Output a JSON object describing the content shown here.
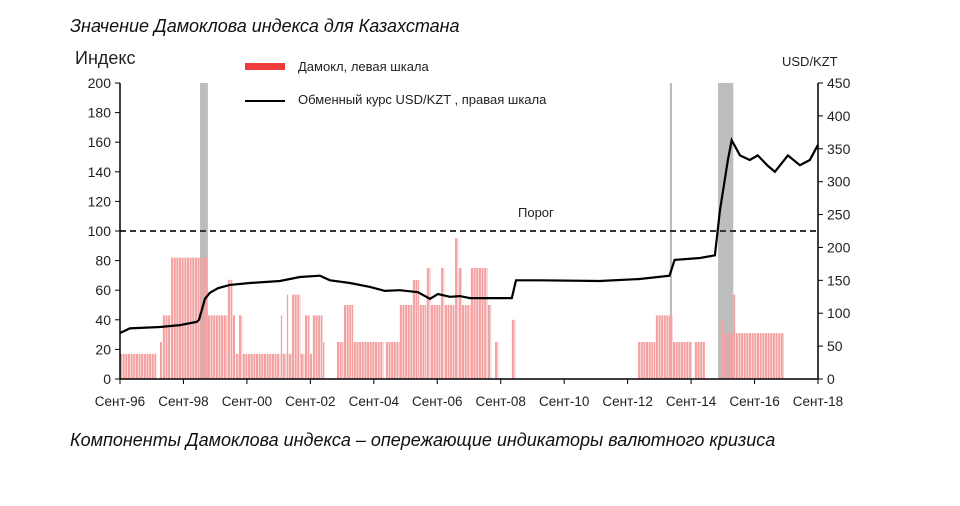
{
  "header": {
    "title": "Значение Дамоклова индекса для Казахстана"
  },
  "footer": {
    "caption": "Компоненты Дамоклова индекса – опережающие индикаторы валютного кризиса"
  },
  "chart_data": {
    "type": "bar+line",
    "left_axis_label": "Индекс",
    "right_axis_label": "USD/KZT",
    "ylim_left": [
      0,
      200
    ],
    "ylim_right": [
      0,
      450
    ],
    "yticks_left": [
      0,
      20,
      40,
      60,
      80,
      100,
      120,
      140,
      160,
      180,
      200
    ],
    "yticks_right": [
      0,
      50,
      100,
      150,
      200,
      250,
      300,
      350,
      400,
      450
    ],
    "xlim_years": [
      1996.67,
      2018.67
    ],
    "xticks": [
      {
        "year": 1996.67,
        "label": "Сент-96"
      },
      {
        "year": 1998.67,
        "label": "Сент-98"
      },
      {
        "year": 2000.67,
        "label": "Сент-00"
      },
      {
        "year": 2002.67,
        "label": "Сент-02"
      },
      {
        "year": 2004.67,
        "label": "Сент-04"
      },
      {
        "year": 2006.67,
        "label": "Сент-06"
      },
      {
        "year": 2008.67,
        "label": "Сент-08"
      },
      {
        "year": 2010.67,
        "label": "Сент-10"
      },
      {
        "year": 2012.67,
        "label": "Сент-12"
      },
      {
        "year": 2014.67,
        "label": "Сент-14"
      },
      {
        "year": 2016.67,
        "label": "Сент-16"
      },
      {
        "year": 2018.67,
        "label": "Сент-18"
      }
    ],
    "threshold": {
      "value": 100,
      "label": "Порог"
    },
    "legend": {
      "position": "top-center",
      "bar_label": "Дамокл, левая шкала",
      "line_label": "Обменный курс USD/KZT , правая шкала"
    },
    "colors": {
      "bars": "#f4a0a0",
      "legend_bar": "#ee3b3b",
      "line": "#000000",
      "crisis": "#bdbdbd"
    },
    "crisis_periods": [
      [
        1999.19,
        1999.44
      ],
      [
        2014.0,
        2014.07
      ],
      [
        2015.52,
        2016.0
      ]
    ],
    "damocles_runs": [
      [
        1996.67,
        1997.83,
        17
      ],
      [
        1997.93,
        1998.02,
        25
      ],
      [
        1998.02,
        1998.28,
        43
      ],
      [
        1998.28,
        1999.44,
        82
      ],
      [
        1999.44,
        2000.07,
        43
      ],
      [
        2000.07,
        2000.23,
        67
      ],
      [
        2000.23,
        2000.32,
        43
      ],
      [
        2000.32,
        2000.42,
        17
      ],
      [
        2000.42,
        2000.54,
        43
      ],
      [
        2000.54,
        2001.74,
        17
      ],
      [
        2001.74,
        2001.8,
        43
      ],
      [
        2001.8,
        2001.93,
        17
      ],
      [
        2001.93,
        2001.99,
        57
      ],
      [
        2001.99,
        2002.09,
        17
      ],
      [
        2002.09,
        2002.37,
        57
      ],
      [
        2002.37,
        2002.5,
        17
      ],
      [
        2002.5,
        2002.66,
        43
      ],
      [
        2002.66,
        2002.75,
        17
      ],
      [
        2002.75,
        2003.07,
        43
      ],
      [
        2003.07,
        2003.13,
        25
      ],
      [
        2003.51,
        2003.73,
        25
      ],
      [
        2003.73,
        2004.04,
        50
      ],
      [
        2004.04,
        2004.99,
        25
      ],
      [
        2005.05,
        2005.49,
        25
      ],
      [
        2005.49,
        2005.9,
        50
      ],
      [
        2005.9,
        2006.12,
        67
      ],
      [
        2006.12,
        2006.34,
        50
      ],
      [
        2006.34,
        2006.47,
        75
      ],
      [
        2006.47,
        2006.79,
        50
      ],
      [
        2006.79,
        2006.91,
        75
      ],
      [
        2006.91,
        2007.23,
        50
      ],
      [
        2007.23,
        2007.35,
        95
      ],
      [
        2007.35,
        2007.45,
        75
      ],
      [
        2007.45,
        2007.73,
        50
      ],
      [
        2007.73,
        2008.27,
        75
      ],
      [
        2008.27,
        2008.39,
        50
      ],
      [
        2008.49,
        2008.61,
        25
      ],
      [
        2009.02,
        2009.15,
        40
      ],
      [
        2013.0,
        2013.56,
        25
      ],
      [
        2013.56,
        2014.1,
        43
      ],
      [
        2014.1,
        2014.7,
        25
      ],
      [
        2014.79,
        2015.13,
        25
      ],
      [
        2015.64,
        2015.7,
        40
      ],
      [
        2015.7,
        2016.0,
        31
      ],
      [
        2016.0,
        2016.08,
        57
      ],
      [
        2016.08,
        2017.6,
        31
      ]
    ],
    "exchange_rate": [
      [
        1996.67,
        70
      ],
      [
        1996.98,
        77
      ],
      [
        1997.93,
        79
      ],
      [
        1998.56,
        82
      ],
      [
        1999.09,
        87
      ],
      [
        1999.16,
        90
      ],
      [
        1999.35,
        122
      ],
      [
        1999.5,
        131
      ],
      [
        1999.76,
        138
      ],
      [
        2000.13,
        143
      ],
      [
        2000.76,
        146
      ],
      [
        2001.71,
        149
      ],
      [
        2002.34,
        155
      ],
      [
        2002.97,
        157
      ],
      [
        2003.29,
        150
      ],
      [
        2003.92,
        146
      ],
      [
        2004.55,
        140
      ],
      [
        2005.02,
        134
      ],
      [
        2005.49,
        135
      ],
      [
        2006.06,
        132
      ],
      [
        2006.44,
        122
      ],
      [
        2006.69,
        129
      ],
      [
        2007.07,
        125
      ],
      [
        2007.38,
        126
      ],
      [
        2007.7,
        123
      ],
      [
        2008.64,
        123
      ],
      [
        2009.02,
        123
      ],
      [
        2009.15,
        150
      ],
      [
        2009.9,
        150
      ],
      [
        2011.79,
        149
      ],
      [
        2013.05,
        152
      ],
      [
        2013.99,
        157
      ],
      [
        2014.15,
        181
      ],
      [
        2014.95,
        184
      ],
      [
        2015.42,
        188
      ],
      [
        2015.58,
        257
      ],
      [
        2015.83,
        333
      ],
      [
        2015.95,
        363
      ],
      [
        2016.21,
        340
      ],
      [
        2016.52,
        333
      ],
      [
        2016.77,
        340
      ],
      [
        2017.09,
        324
      ],
      [
        2017.31,
        315
      ],
      [
        2017.72,
        340
      ],
      [
        2018.1,
        325
      ],
      [
        2018.41,
        333
      ],
      [
        2018.67,
        356
      ]
    ]
  }
}
